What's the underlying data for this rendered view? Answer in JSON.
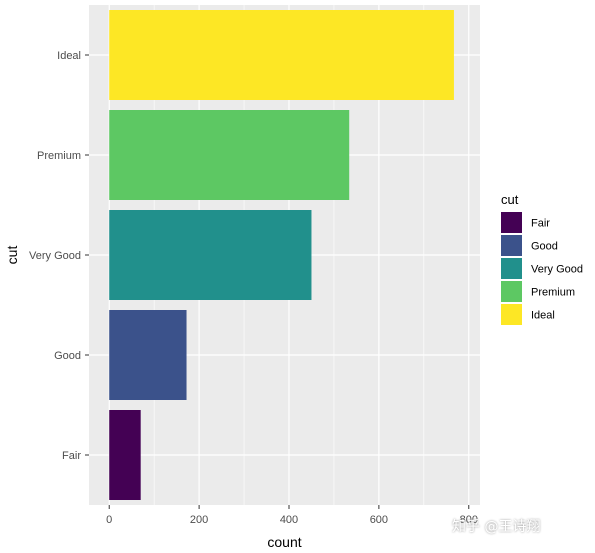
{
  "chart_data": {
    "type": "bar",
    "orientation": "horizontal",
    "categories": [
      "Fair",
      "Good",
      "Very Good",
      "Premium",
      "Ideal"
    ],
    "values": [
      70,
      172,
      450,
      534,
      767
    ],
    "colors": [
      "#440154",
      "#3B528B",
      "#21908C",
      "#5DC863",
      "#FDE725"
    ],
    "xlabel": "count",
    "ylabel": "cut",
    "xlim": [
      0,
      800
    ],
    "xticks": [
      0,
      200,
      400,
      600,
      800
    ],
    "grid": true,
    "legend": {
      "title": "cut",
      "placement": "right",
      "entries": [
        "Fair",
        "Good",
        "Very Good",
        "Premium",
        "Ideal"
      ]
    }
  },
  "watermark": "知乎 @王诗翔"
}
